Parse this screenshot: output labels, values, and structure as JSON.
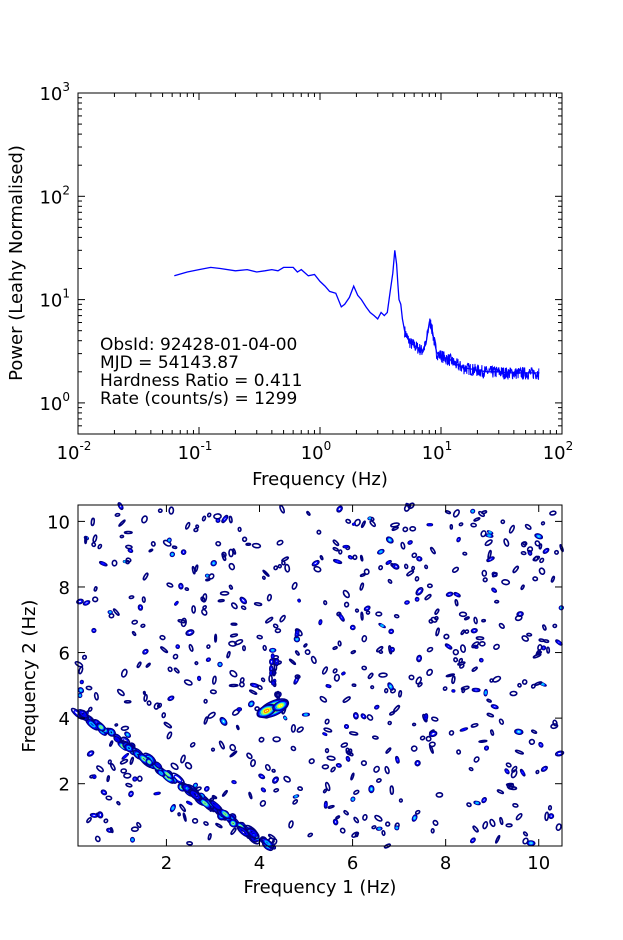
{
  "chart_data": [
    {
      "type": "line",
      "title": "",
      "xlabel": "Frequency (Hz)",
      "ylabel": "Power (Leahy Normalised)",
      "xscale": "log",
      "yscale": "log",
      "xlim": [
        0.01,
        100
      ],
      "ylim": [
        0.5,
        1000
      ],
      "x_ticks": [
        {
          "base": "10",
          "exp": "-2"
        },
        {
          "base": "10",
          "exp": "-1"
        },
        {
          "base": "10",
          "exp": "0"
        },
        {
          "base": "10",
          "exp": "1"
        },
        {
          "base": "10",
          "exp": "2"
        }
      ],
      "y_ticks": [
        {
          "base": "10",
          "exp": "0"
        },
        {
          "base": "10",
          "exp": "1"
        },
        {
          "base": "10",
          "exp": "2"
        },
        {
          "base": "10",
          "exp": "3"
        }
      ],
      "annotation": [
        "ObsId: 92428-01-04-00",
        "MJD = 54143.87",
        "Hardness Ratio = 0.411",
        "Rate (counts/s) = 1299"
      ],
      "series": [
        {
          "name": "power spectrum",
          "color": "#0000ff",
          "x": [
            0.0625,
            0.08,
            0.1,
            0.125,
            0.15,
            0.2,
            0.25,
            0.3,
            0.35,
            0.4,
            0.45,
            0.5,
            0.55,
            0.6,
            0.65,
            0.7,
            0.8,
            0.9,
            1.0,
            1.1,
            1.2,
            1.35,
            1.5,
            1.6,
            1.75,
            1.9,
            2.05,
            2.2,
            2.4,
            2.6,
            2.8,
            3.0,
            3.2,
            3.4,
            3.6,
            3.8,
            4.0,
            4.15,
            4.3,
            4.4,
            4.5,
            4.65,
            4.8,
            5.0,
            5.3,
            5.6,
            6.0,
            6.5,
            7.0,
            7.5,
            8.0,
            8.3,
            8.6,
            8.9,
            9.2,
            9.6,
            10.0,
            11,
            12,
            13,
            14,
            15,
            17,
            19,
            21,
            24,
            27,
            30,
            35,
            40,
            45,
            50,
            55,
            60,
            65
          ],
          "y": [
            17,
            18.5,
            19.5,
            20.5,
            20,
            19,
            19.5,
            18.5,
            19,
            19.5,
            19,
            20.5,
            20.5,
            20.5,
            18.5,
            19.5,
            17,
            17.5,
            15,
            13.5,
            12,
            11.5,
            8.5,
            9,
            10.5,
            13.5,
            11,
            10,
            8.5,
            7.5,
            7,
            6.5,
            7.5,
            7,
            7.5,
            12,
            18,
            30,
            22,
            14,
            10,
            9,
            6.5,
            5,
            4.2,
            3.8,
            3.6,
            3.4,
            3.2,
            3.7,
            6,
            5.8,
            4.5,
            3.7,
            3.1,
            2.9,
            2.9,
            2.7,
            2.6,
            2.4,
            2.3,
            2.2,
            2.15,
            2.1,
            2.05,
            2.0,
            2.0,
            2.0,
            1.95,
            1.95,
            1.95,
            1.95,
            1.95,
            1.95,
            1.95
          ]
        }
      ]
    },
    {
      "type": "heatmap",
      "subtype": "contour",
      "title": "",
      "xlabel": "Frequency 1 (Hz)",
      "ylabel": "Frequency 2 (Hz)",
      "xlim": [
        0.1,
        10.5
      ],
      "ylim": [
        0.1,
        10.5
      ],
      "x_ticks": [
        "2",
        "4",
        "6",
        "8",
        "10"
      ],
      "y_ticks": [
        "2",
        "4",
        "6",
        "8",
        "10"
      ],
      "x_tick_values": [
        2,
        4,
        6,
        8,
        10
      ],
      "y_tick_values": [
        2,
        4,
        6,
        8,
        10
      ],
      "colors": [
        "#00007f",
        "#0000ff",
        "#00bfff",
        "#7fff7f",
        "#ffff00",
        "#ff7f00",
        "#ff0000"
      ],
      "features": [
        {
          "name": "cross-diagonal band",
          "from": [
            0.1,
            4.2
          ],
          "to": [
            4.2,
            0.1
          ],
          "level": 3
        },
        {
          "name": "central peak",
          "center": [
            4.3,
            4.3
          ],
          "level": 6
        },
        {
          "name": "vertical streak",
          "x": 4.3,
          "from_y": 5.0,
          "to_y": 6.0,
          "level": 1
        }
      ]
    }
  ]
}
